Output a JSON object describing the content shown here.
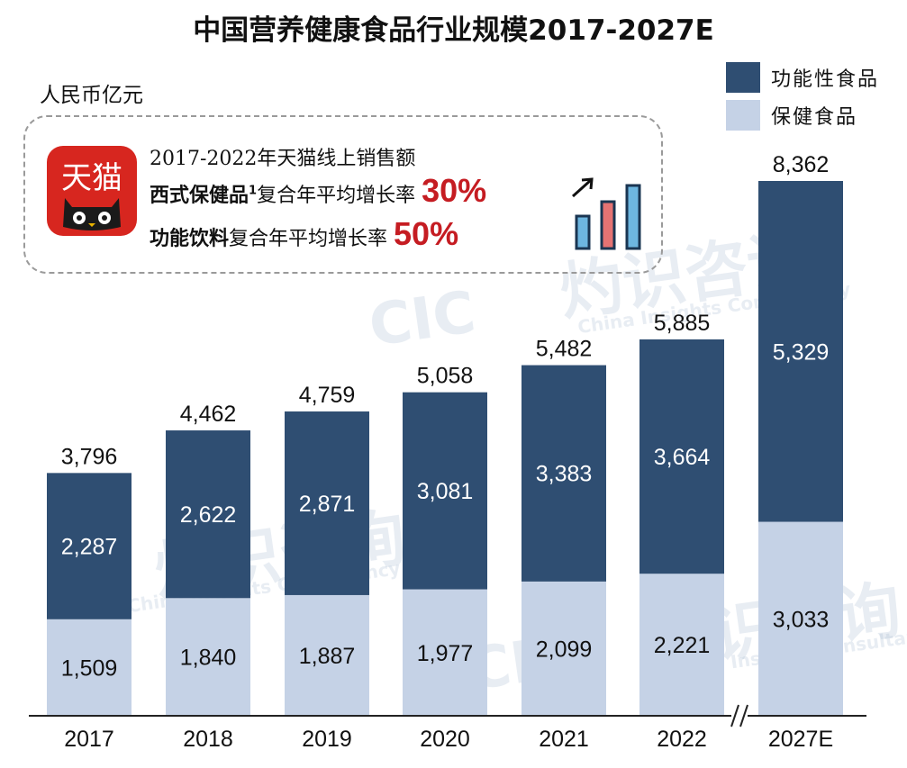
{
  "title": "中国营养健康食品行业规模2017-2027E",
  "unit": "人民币亿元",
  "legend": [
    {
      "label": "功能性食品",
      "color": "#2f4e72"
    },
    {
      "label": "保健食品",
      "color": "#c5d2e6"
    }
  ],
  "callout": {
    "logo_text": "天猫",
    "line1": "2017-2022年天猫线上销售额",
    "line2_bold": "西式保健品",
    "line2_sup": "1",
    "line2_rest": "复合年平均增长率",
    "line2_rate": "30%",
    "line3_bold": "功能饮料",
    "line3_rest": "复合年平均增长率",
    "line3_rate": "50%"
  },
  "watermark": {
    "brand": "灼识咨询",
    "abbr": "CIC",
    "english": "China Insights Consultancy"
  },
  "colors": {
    "functional": "#2f4e72",
    "health": "#c5d2e6",
    "accent": "#c51c22"
  },
  "chart_data": {
    "type": "bar",
    "stacked": true,
    "categories": [
      "2017",
      "2018",
      "2019",
      "2020",
      "2021",
      "2022",
      "2027E"
    ],
    "series": [
      {
        "name": "保健食品",
        "values": [
          1509,
          1840,
          1887,
          1977,
          2099,
          2221,
          3033
        ]
      },
      {
        "name": "功能性食品",
        "values": [
          2287,
          2622,
          2871,
          3081,
          3383,
          3664,
          5329
        ]
      }
    ],
    "totals": [
      3796,
      4462,
      4759,
      5058,
      5482,
      5885,
      8362
    ],
    "value_labels": {
      "health": [
        "1,509",
        "1,840",
        "1,887",
        "1,977",
        "2,099",
        "2,221",
        "3,033"
      ],
      "functional": [
        "2,287",
        "2,622",
        "2,871",
        "3,081",
        "3,383",
        "3,664",
        "5,329"
      ],
      "totals": [
        "3,796",
        "4,462",
        "4,759",
        "5,058",
        "5,482",
        "5,885",
        "8,362"
      ]
    },
    "axis_break_before": "2027E"
  }
}
